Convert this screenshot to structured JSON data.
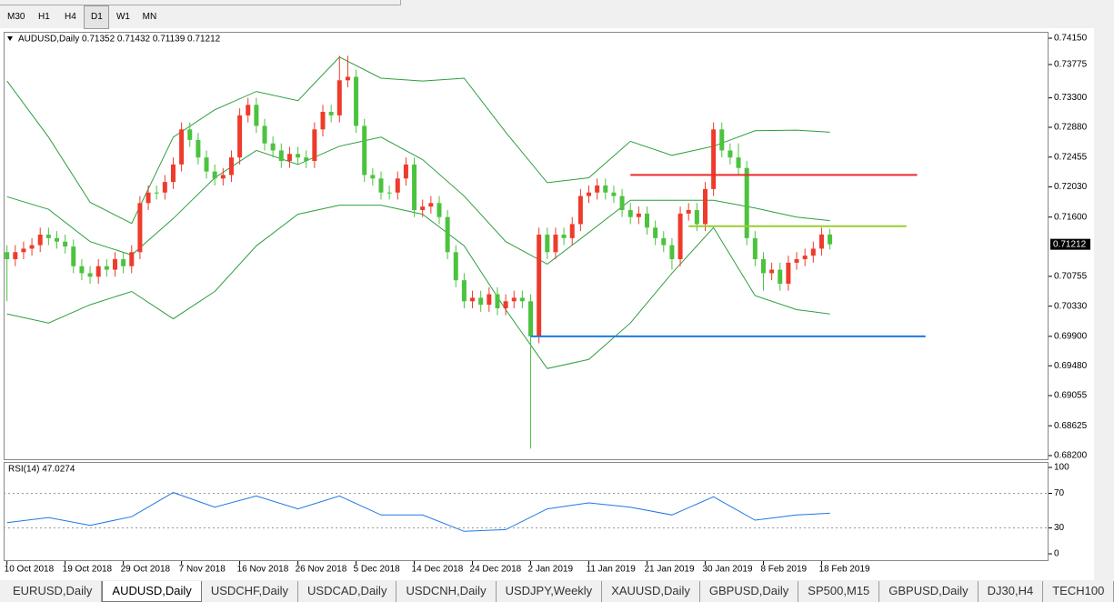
{
  "toolbar": {
    "timeframes": [
      "M30",
      "H1",
      "H4",
      "D1",
      "W1",
      "MN"
    ],
    "active": 3
  },
  "chart_data": [
    {
      "type": "candlestick",
      "title": "AUDUSD,Daily  0.71352 0.71432 0.71139 0.71212",
      "up_color": "#ee3b2b",
      "down_color": "#4cc33e",
      "open": [
        0.711,
        0.71,
        0.711,
        0.7115,
        0.712,
        0.7135,
        0.713,
        0.7125,
        0.7118,
        0.709,
        0.708,
        0.7075,
        0.709,
        0.7085,
        0.71,
        0.709,
        0.711,
        0.718,
        0.7195,
        0.7195,
        0.721,
        0.7235,
        0.7285,
        0.727,
        0.7245,
        0.7225,
        0.7215,
        0.722,
        0.7245,
        0.7305,
        0.732,
        0.729,
        0.7265,
        0.7255,
        0.724,
        0.725,
        0.7245,
        0.724,
        0.7285,
        0.731,
        0.7305,
        0.7355,
        0.736,
        0.729,
        0.722,
        0.7215,
        0.7195,
        0.7195,
        0.7215,
        0.7235,
        0.717,
        0.7175,
        0.718,
        0.716,
        0.711,
        0.707,
        0.704,
        0.7045,
        0.7035,
        0.705,
        0.703,
        0.704,
        0.7045,
        0.704,
        0.699,
        0.7135,
        0.711,
        0.7135,
        0.713,
        0.715,
        0.719,
        0.7195,
        0.7205,
        0.7195,
        0.719,
        0.717,
        0.716,
        0.7165,
        0.7145,
        0.713,
        0.712,
        0.71,
        0.7165,
        0.717,
        0.715,
        0.72,
        0.7285,
        0.7255,
        0.7245,
        0.723,
        0.713,
        0.71,
        0.708,
        0.7085,
        0.7065,
        0.7095,
        0.71,
        0.7105,
        0.7115,
        0.71352
      ],
      "high": [
        0.712,
        0.712,
        0.7125,
        0.713,
        0.7145,
        0.7145,
        0.714,
        0.7135,
        0.7128,
        0.71,
        0.709,
        0.71,
        0.71,
        0.711,
        0.711,
        0.712,
        0.719,
        0.7205,
        0.7205,
        0.722,
        0.7245,
        0.7295,
        0.7295,
        0.728,
        0.7255,
        0.7235,
        0.723,
        0.7255,
        0.7315,
        0.733,
        0.733,
        0.73,
        0.7275,
        0.7265,
        0.726,
        0.726,
        0.7255,
        0.7295,
        0.732,
        0.732,
        0.739,
        0.739,
        0.737,
        0.73,
        0.723,
        0.7225,
        0.7205,
        0.7225,
        0.7245,
        0.7245,
        0.7185,
        0.719,
        0.719,
        0.717,
        0.712,
        0.708,
        0.7055,
        0.7055,
        0.706,
        0.706,
        0.705,
        0.7055,
        0.7055,
        0.705,
        0.7145,
        0.7145,
        0.7145,
        0.7145,
        0.716,
        0.72,
        0.7205,
        0.7215,
        0.7215,
        0.7205,
        0.72,
        0.718,
        0.7175,
        0.7175,
        0.7155,
        0.714,
        0.713,
        0.7175,
        0.718,
        0.718,
        0.721,
        0.7295,
        0.7295,
        0.7265,
        0.7265,
        0.724,
        0.714,
        0.711,
        0.7095,
        0.7095,
        0.7105,
        0.711,
        0.7115,
        0.7125,
        0.7145,
        0.71432
      ],
      "low": [
        0.704,
        0.709,
        0.71,
        0.7105,
        0.711,
        0.712,
        0.7115,
        0.7108,
        0.708,
        0.707,
        0.7065,
        0.7065,
        0.7075,
        0.7075,
        0.708,
        0.708,
        0.71,
        0.717,
        0.7185,
        0.7185,
        0.72,
        0.7225,
        0.726,
        0.7235,
        0.7215,
        0.7205,
        0.7205,
        0.721,
        0.7235,
        0.7295,
        0.728,
        0.7255,
        0.7245,
        0.723,
        0.723,
        0.7235,
        0.723,
        0.723,
        0.7275,
        0.7295,
        0.7295,
        0.7345,
        0.728,
        0.721,
        0.7205,
        0.7185,
        0.7185,
        0.7185,
        0.7205,
        0.716,
        0.716,
        0.7165,
        0.715,
        0.71,
        0.706,
        0.703,
        0.703,
        0.7025,
        0.7025,
        0.702,
        0.702,
        0.703,
        0.703,
        0.683,
        0.698,
        0.71,
        0.71,
        0.712,
        0.712,
        0.714,
        0.718,
        0.7185,
        0.7185,
        0.718,
        0.716,
        0.715,
        0.715,
        0.7135,
        0.712,
        0.711,
        0.7085,
        0.709,
        0.7155,
        0.714,
        0.714,
        0.719,
        0.7245,
        0.7235,
        0.722,
        0.712,
        0.709,
        0.7055,
        0.707,
        0.7055,
        0.7055,
        0.7085,
        0.709,
        0.7095,
        0.7105,
        0.71139
      ],
      "close": [
        0.71,
        0.711,
        0.7115,
        0.712,
        0.7135,
        0.713,
        0.7125,
        0.7118,
        0.709,
        0.708,
        0.7075,
        0.709,
        0.7085,
        0.71,
        0.709,
        0.711,
        0.718,
        0.7195,
        0.7195,
        0.721,
        0.7235,
        0.7285,
        0.727,
        0.7245,
        0.7225,
        0.7215,
        0.722,
        0.7245,
        0.7305,
        0.732,
        0.729,
        0.7265,
        0.7255,
        0.724,
        0.725,
        0.7245,
        0.724,
        0.7285,
        0.731,
        0.7305,
        0.7355,
        0.736,
        0.729,
        0.722,
        0.7215,
        0.7195,
        0.7195,
        0.7215,
        0.7235,
        0.717,
        0.7175,
        0.718,
        0.716,
        0.711,
        0.707,
        0.704,
        0.7045,
        0.7035,
        0.705,
        0.703,
        0.704,
        0.7045,
        0.704,
        0.699,
        0.7135,
        0.711,
        0.7135,
        0.713,
        0.715,
        0.719,
        0.7195,
        0.7205,
        0.7195,
        0.719,
        0.717,
        0.716,
        0.7165,
        0.7145,
        0.713,
        0.712,
        0.71,
        0.7165,
        0.717,
        0.715,
        0.72,
        0.7285,
        0.7255,
        0.7245,
        0.723,
        0.713,
        0.71,
        0.708,
        0.7085,
        0.7065,
        0.7095,
        0.71,
        0.7105,
        0.7115,
        0.71352,
        0.71212
      ],
      "bands": [
        {
          "color": "#2e9e3e",
          "x": [
            0,
            5,
            10,
            15,
            20,
            25,
            30,
            35,
            40,
            45,
            50,
            55,
            60,
            65,
            70,
            75,
            80,
            85,
            90,
            95,
            99
          ],
          "values": [
            0.7354,
            0.7274,
            0.7181,
            0.7151,
            0.7274,
            0.7313,
            0.7339,
            0.7326,
            0.7388,
            0.7358,
            0.7354,
            0.7358,
            0.7281,
            0.7209,
            0.7216,
            0.7268,
            0.7248,
            0.7261,
            0.7283,
            0.7284,
            0.7281
          ]
        },
        {
          "color": "#2e9e3e",
          "x": [
            0,
            5,
            10,
            15,
            20,
            25,
            30,
            35,
            40,
            45,
            50,
            55,
            60,
            65,
            70,
            75,
            80,
            85,
            90,
            95,
            99
          ],
          "values": [
            0.7189,
            0.7171,
            0.7125,
            0.7106,
            0.7158,
            0.7216,
            0.7255,
            0.7235,
            0.7261,
            0.7274,
            0.7242,
            0.719,
            0.7125,
            0.7093,
            0.7138,
            0.7184,
            0.7184,
            0.7184,
            0.7173,
            0.716,
            0.7155
          ]
        },
        {
          "color": "#2e9e3e",
          "x": [
            0,
            5,
            10,
            15,
            20,
            25,
            30,
            35,
            40,
            45,
            50,
            55,
            60,
            65,
            70,
            75,
            80,
            85,
            90,
            95,
            99
          ],
          "values": [
            0.7022,
            0.7009,
            0.7035,
            0.7054,
            0.7015,
            0.7054,
            0.7119,
            0.7164,
            0.7177,
            0.7177,
            0.7164,
            0.7119,
            0.7028,
            0.6944,
            0.6957,
            0.7009,
            0.708,
            0.7145,
            0.7048,
            0.7028,
            0.7022
          ]
        }
      ],
      "hlines": [
        {
          "value": 0.722,
          "color": "#ee2b2b",
          "from": 75,
          "to": 109.5
        },
        {
          "value": 0.7147,
          "color": "#9acd32",
          "from": 82,
          "to": 108.2
        },
        {
          "value": 0.699,
          "color": "#1e78e0",
          "from": 63,
          "to": 110.5
        }
      ],
      "current_price": {
        "value": 0.71212,
        "label": "0.71212"
      },
      "xlim": [
        -0.4,
        125.3
      ],
      "ylim": [
        0.68148,
        0.74228
      ],
      "yticks": [
        {
          "value": 0.7415,
          "label": "0.74150"
        },
        {
          "value": 0.73775,
          "label": "0.73775"
        },
        {
          "value": 0.733,
          "label": "0.73300"
        },
        {
          "value": 0.7288,
          "label": "0.72880"
        },
        {
          "value": 0.72455,
          "label": "0.72455"
        },
        {
          "value": 0.7203,
          "label": "0.72030"
        },
        {
          "value": 0.716,
          "label": "0.71600"
        },
        {
          "value": 0.70755,
          "label": "0.70755"
        },
        {
          "value": 0.7033,
          "label": "0.70330"
        },
        {
          "value": 0.699,
          "label": "0.69900"
        },
        {
          "value": 0.6948,
          "label": "0.69480"
        },
        {
          "value": 0.69055,
          "label": "0.69055"
        },
        {
          "value": 0.68625,
          "label": "0.68625"
        },
        {
          "value": 0.682,
          "label": "0.68200"
        }
      ],
      "xticks": [
        {
          "value": 0,
          "label": "10 Oct 2018"
        },
        {
          "value": 7,
          "label": "19 Oct 2018"
        },
        {
          "value": 14,
          "label": "29 Oct 2018"
        },
        {
          "value": 21,
          "label": "7 Nov 2018"
        },
        {
          "value": 28,
          "label": "16 Nov 2018"
        },
        {
          "value": 35,
          "label": "26 Nov 2018"
        },
        {
          "value": 42,
          "label": "5 Dec 2018"
        },
        {
          "value": 49,
          "label": "14 Dec 2018"
        },
        {
          "value": 56,
          "label": "24 Dec 2018"
        },
        {
          "value": 63,
          "label": "2 Jan 2019"
        },
        {
          "value": 70,
          "label": "11 Jan 2019"
        },
        {
          "value": 77,
          "label": "21 Jan 2019"
        },
        {
          "value": 84,
          "label": "30 Jan 2019"
        },
        {
          "value": 91,
          "label": "8 Feb 2019"
        },
        {
          "value": 98,
          "label": "18 Feb 2019"
        }
      ]
    },
    {
      "type": "line",
      "title": "RSI(14) 47.0274",
      "series": [
        {
          "color": "#1e78e0",
          "x": [
            0,
            5,
            10,
            15,
            20,
            25,
            30,
            35,
            40,
            45,
            50,
            55,
            60,
            65,
            70,
            75,
            80,
            85,
            90,
            95,
            99
          ],
          "values": [
            36,
            42,
            33,
            43,
            71,
            54,
            67,
            52,
            67,
            45,
            45,
            26,
            28,
            52,
            59,
            54,
            45,
            66,
            39,
            45,
            47
          ]
        }
      ],
      "levels": [
        70,
        30
      ],
      "ylim": [
        -8.4,
        105.3
      ],
      "yticks": [
        100,
        70,
        30,
        0
      ]
    }
  ],
  "tabs": {
    "items": [
      "EURUSD,Daily",
      "AUDUSD,Daily",
      "USDCHF,Daily",
      "USDCAD,Daily",
      "USDCNH,Daily",
      "USDJPY,Weekly",
      "XAUUSD,Daily",
      "GBPUSD,Daily",
      "SP500,M15",
      "GBPUSD,Daily",
      "DJ30,H4",
      "TECH100"
    ],
    "active": 1
  }
}
